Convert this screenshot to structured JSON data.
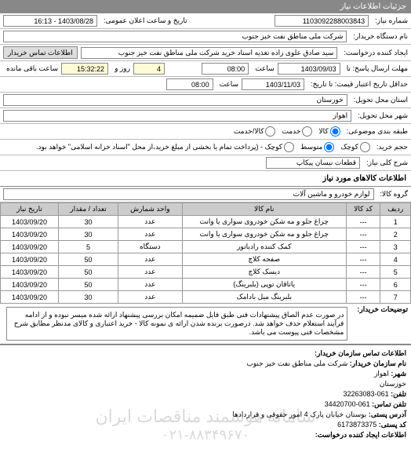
{
  "header": {
    "title": "جزئیات اطلاعات نیاز"
  },
  "need": {
    "number_label": "شماره نیاز:",
    "number": "1103092288003843",
    "announce_label": "تاریخ و ساعت اعلان عمومی:",
    "announce": "1403/08/28 - 16:13"
  },
  "buyer_device": {
    "label": "نام دستگاه خریدار:",
    "value": "شرکت ملی مناطق نفت خیز جنوب"
  },
  "requester": {
    "label": "ایجاد کننده درخواست:",
    "value": "سید صادق علوی زاده  تغذیه اسناد خرید  شرکت ملی مناطق نفت خیز جنوب",
    "contact_btn": "اطلاعات تماس خریدار"
  },
  "deadline": {
    "label": "مهلت ارسال پاسخ: تا",
    "date": "1403/09/03",
    "time_label": "ساعت",
    "time": "08:00",
    "days": "4",
    "days_label": "روز و",
    "remain": "15:32:22",
    "remain_label": "ساعت باقی مانده"
  },
  "validity": {
    "label": "حداقل تاریخ اعتبار قیمت: تا تاریخ:",
    "date": "1403/11/03",
    "time_label": "ساعت",
    "time": "08:00"
  },
  "delivery_province": {
    "label": "استان محل تحویل:",
    "value": "خوزستان"
  },
  "delivery_city": {
    "label": "شهر محل تحویل:",
    "value": "اهواز"
  },
  "category": {
    "label": "طبقه بندی موضوعی:",
    "options": {
      "kala": "کالا",
      "khadamat": "خدمت",
      "both": "کالا/خدمت"
    },
    "selected": 0
  },
  "size": {
    "label": "حجم خرید:",
    "options": {
      "small": "کوچک",
      "medium": "متوسط",
      "large": "کوچک - (پرداخت تمام یا بخشی از مبلغ خرید،از محل \"اسناد خزانه اسلامی\" خواهد بود."
    },
    "selected": 1
  },
  "brief": {
    "label": "شرح کلی نیاز:",
    "value": "قطعات نیسان پیکاپ"
  },
  "goods_info_title": "اطلاعات کالاهای مورد نیاز",
  "group": {
    "label": "گروه کالا:",
    "value": "لوازم خودرو و ماشین آلات"
  },
  "table": {
    "columns": [
      "ردیف",
      "کد کالا",
      "نام کالا",
      "واحد شمارش",
      "تعداد / مقدار",
      "تاریخ نیاز"
    ],
    "rows": [
      [
        "1",
        "---",
        "چراغ جلو و مه شکن خودروی سواری یا وانت",
        "عدد",
        "30",
        "1403/09/20"
      ],
      [
        "2",
        "---",
        "چراغ جلو و مه شکن خودروی سواری یا وانت",
        "عدد",
        "30",
        "1403/09/20"
      ],
      [
        "3",
        "---",
        "کمک کننده رادیاتور",
        "دستگاه",
        "5",
        "1403/09/20"
      ],
      [
        "4",
        "---",
        "صفحه کلاچ",
        "عدد",
        "50",
        "1403/09/20"
      ],
      [
        "5",
        "---",
        "دیسک کلاچ",
        "عدد",
        "50",
        "1403/09/20"
      ],
      [
        "6",
        "---",
        "یاتاقان توپی (بلبرینگ)",
        "عدد",
        "50",
        "1403/09/20"
      ],
      [
        "7",
        "---",
        "بلبرینگ میل بادامک",
        "عدد",
        "30",
        "1403/09/20"
      ]
    ]
  },
  "buyer_notes": {
    "label": "توضیحات خریدار:",
    "text": "در صورت عدم الصاق پیشنهادات فنی طبق فایل ضمیمه امکان بررسی پیشنهاد ارائه شده میسر نبوده و از ادامه فرآیند استعلام حذف خواهد شد. درصورت برنده شدن ارائه ی نمونه کالا - خرید اعتباری و کالای مدنظر مطابق شرح مشخصات فنی پیوست می باشد."
  },
  "contact": {
    "title": "اطلاعات تماس سازمان خریدار:",
    "org_label": "نام سازمان خریدار:",
    "org": "شرکت ملی مناطق نفت خیز جنوب",
    "city_label": "شهر:",
    "city": "اهواز",
    "province_label": "خوزستان",
    "phone_label": "تلفن:",
    "phone": "061-32263083",
    "fax_label": "تلفن تماس:",
    "fax": "061-34420700",
    "address_label": "آدرس پستی:",
    "address": "بوستان خیابان پارک 4 امور حقوقی و قراردادها",
    "post_label": "کد پستی:",
    "post": "6173873375",
    "req_info_label": "اطلاعات ایجاد کننده درخواست:"
  },
  "watermark": {
    "line1": "سامانه هوشمند مناقصات ایران",
    "line2": "۰۲۱-۸۸۳۴۹۶۷۰"
  }
}
